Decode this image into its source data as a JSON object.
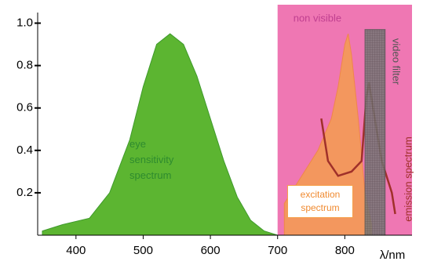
{
  "chart_data": {
    "type": "area",
    "xlabel": "λ/nm",
    "xlim": [
      343,
      900
    ],
    "xticks": [
      400,
      500,
      600,
      700,
      800
    ],
    "ylim": [
      0,
      1.05
    ],
    "yticks": [
      0.2,
      0.4,
      0.6,
      0.8,
      {
        "value": 1,
        "label": "1.0"
      }
    ],
    "bands": [
      {
        "label": "non visible",
        "from": 700,
        "to": 900,
        "color": "#ec5fa6"
      }
    ],
    "series": [
      {
        "name": "eye sensitivity spectrum",
        "color": "#5cb531",
        "x": [
          350,
          380,
          420,
          450,
          480,
          500,
          520,
          540,
          560,
          580,
          600,
          620,
          640,
          660,
          680,
          700
        ],
        "values": [
          0.02,
          0.05,
          0.08,
          0.2,
          0.45,
          0.7,
          0.9,
          0.95,
          0.9,
          0.75,
          0.55,
          0.35,
          0.18,
          0.07,
          0.02,
          0
        ]
      },
      {
        "name": "excitation spectrum",
        "color": "#f5a04a",
        "x": [
          710,
          740,
          760,
          780,
          790,
          800,
          805,
          810,
          820,
          830,
          840
        ],
        "values": [
          0.15,
          0.3,
          0.4,
          0.55,
          0.7,
          0.9,
          0.95,
          0.85,
          0.55,
          0.2,
          0.05
        ]
      },
      {
        "name": "emission spectrum",
        "color": "#a0302a",
        "x": [
          765,
          775,
          790,
          810,
          825,
          832,
          836,
          842,
          855,
          870,
          875
        ],
        "values": [
          0.55,
          0.35,
          0.28,
          0.3,
          0.35,
          0.65,
          0.72,
          0.6,
          0.35,
          0.2,
          0.1
        ]
      },
      {
        "name": "video filter",
        "color": "#6e6e7a",
        "x": [
          830,
          830,
          860,
          860
        ],
        "values": [
          0,
          0.97,
          0.97,
          0
        ]
      }
    ]
  }
}
